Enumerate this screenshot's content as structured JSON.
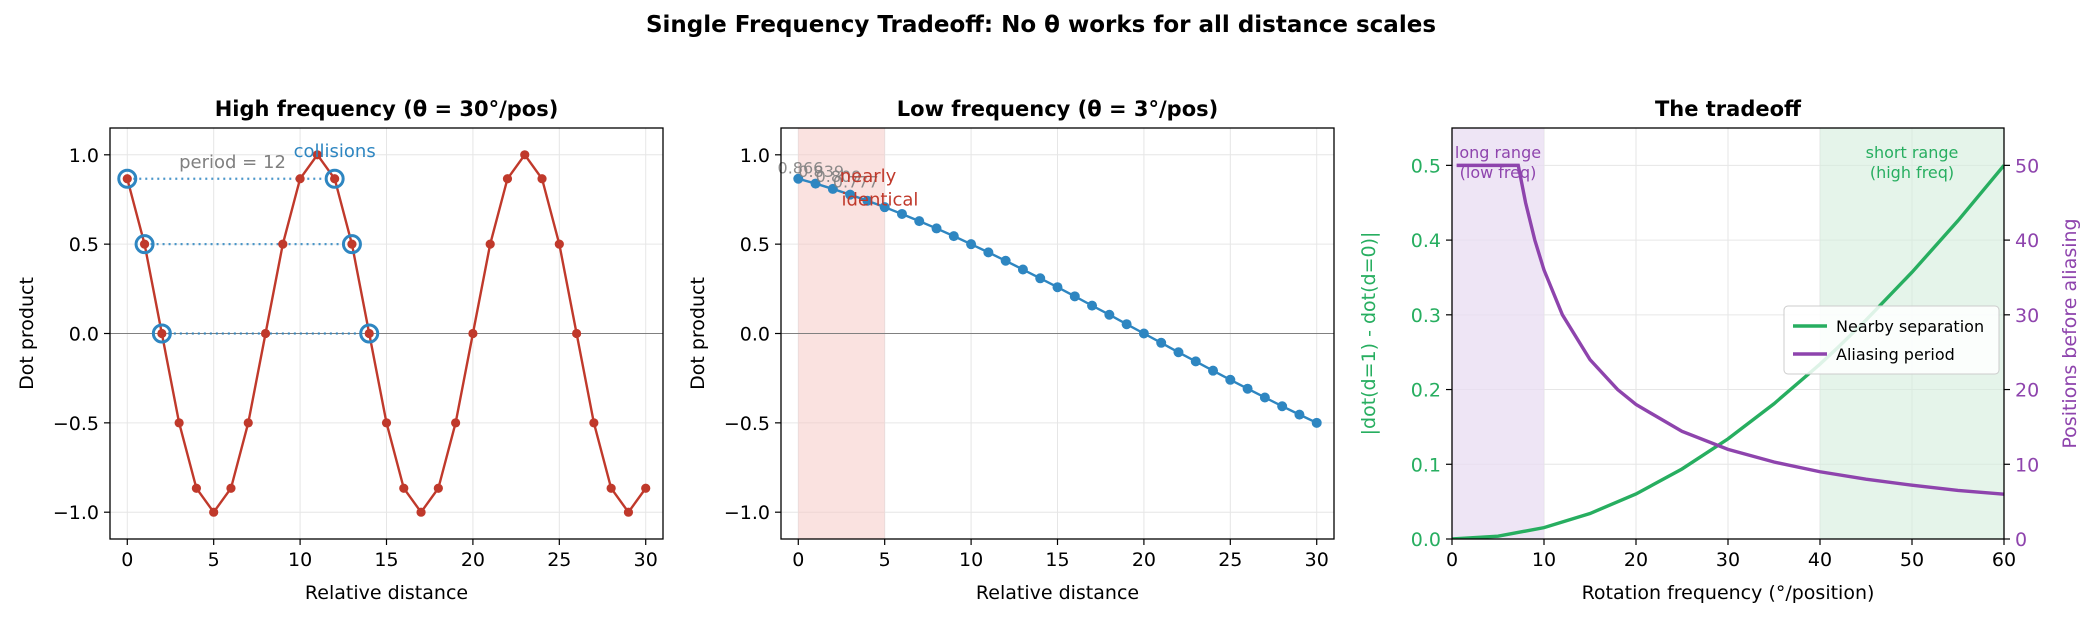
{
  "suptitle": "Single Frequency Tradeoff: No θ works for all distance scales",
  "colors": {
    "red": "#c0392b",
    "blue": "#2e86c1",
    "green": "#27ae60",
    "purple": "#8e44ad",
    "gray": "#808080",
    "axis": "#000000"
  },
  "chart_data": [
    {
      "type": "line",
      "title": "High frequency (θ = 30°/pos)",
      "xlabel": "Relative distance",
      "ylabel": "Dot product",
      "xlim": [
        -1,
        31
      ],
      "ylim": [
        -1.15,
        1.15
      ],
      "xticks": [
        0,
        5,
        10,
        15,
        20,
        25,
        30
      ],
      "xtick_labels": [
        "0",
        "5",
        "10",
        "15",
        "20",
        "25",
        "30"
      ],
      "yticks": [
        -1.0,
        -0.5,
        0.0,
        0.5,
        1.0
      ],
      "ytick_labels": [
        "−1.0",
        "−0.5",
        "0.0",
        "0.5",
        "1.0"
      ],
      "grid": true,
      "series": [
        {
          "x": [
            0,
            1,
            2,
            3,
            4,
            5,
            6,
            7,
            8,
            9,
            10,
            11,
            12,
            13,
            14,
            15,
            16,
            17,
            18,
            19,
            20,
            21,
            22,
            23,
            24,
            25,
            26,
            27,
            28,
            29,
            30
          ],
          "y": [
            0.866,
            0.5,
            0.0,
            -0.5,
            -0.866,
            -1.0,
            -0.866,
            -0.5,
            0.0,
            0.5,
            0.866,
            1.0,
            0.866,
            0.5,
            0.0,
            -0.5,
            -0.866,
            -1.0,
            -0.866,
            -0.5,
            0.0,
            0.5,
            0.866,
            1.0,
            0.866,
            0.5,
            0.0,
            -0.5,
            -0.866,
            -1.0,
            -0.866
          ]
        }
      ],
      "collision_pairs": [
        {
          "x1": 0,
          "x2": 12,
          "y": 0.866
        },
        {
          "x1": 1,
          "x2": 13,
          "y": 0.5
        },
        {
          "x1": 2,
          "x2": 14,
          "y": 0.0
        }
      ],
      "annotations": [
        {
          "text": "period = 12",
          "x": 3,
          "y": 0.96
        },
        {
          "text": "collisions",
          "x": 12,
          "y": 1.02
        }
      ]
    },
    {
      "type": "line",
      "title": "Low frequency (θ = 3°/pos)",
      "xlabel": "Relative distance",
      "ylabel": "Dot product",
      "xlim": [
        -1,
        31
      ],
      "ylim": [
        -1.15,
        1.15
      ],
      "xticks": [
        0,
        5,
        10,
        15,
        20,
        25,
        30
      ],
      "xtick_labels": [
        "0",
        "5",
        "10",
        "15",
        "20",
        "25",
        "30"
      ],
      "yticks": [
        -1.0,
        -0.5,
        0.0,
        0.5,
        1.0
      ],
      "ytick_labels": [
        "−1.0",
        "−0.5",
        "0.0",
        "0.5",
        "1.0"
      ],
      "grid": true,
      "shaded_region": [
        0,
        5
      ],
      "series": [
        {
          "x": [
            0,
            1,
            2,
            3,
            4,
            5,
            6,
            7,
            8,
            9,
            10,
            11,
            12,
            13,
            14,
            15,
            16,
            17,
            18,
            19,
            20,
            21,
            22,
            23,
            24,
            25,
            26,
            27,
            28,
            29,
            30
          ],
          "y": [
            0.866,
            0.839,
            0.809,
            0.777,
            0.743,
            0.707,
            0.669,
            0.629,
            0.588,
            0.545,
            0.5,
            0.454,
            0.407,
            0.358,
            0.309,
            0.259,
            0.208,
            0.156,
            0.105,
            0.052,
            0.0,
            -0.052,
            -0.105,
            -0.156,
            -0.208,
            -0.259,
            -0.309,
            -0.358,
            -0.407,
            -0.454,
            -0.5
          ]
        }
      ],
      "annotations": [
        {
          "text": "0.866",
          "x": -1.2,
          "y": 0.93
        },
        {
          "text": "0.839",
          "x": 0.0,
          "y": 0.91
        },
        {
          "text": "0.809",
          "x": 1.0,
          "y": 0.88
        },
        {
          "text": "0.777",
          "x": 2.0,
          "y": 0.85
        },
        {
          "text": "nearly",
          "x": 2.4,
          "y": 0.88
        },
        {
          "text": "identical",
          "x": 2.5,
          "y": 0.75
        }
      ]
    },
    {
      "type": "line",
      "title": "The tradeoff",
      "xlabel": "Rotation frequency (°/position)",
      "ylabel": "|dot(d=1) - dot(d=0)|",
      "ylabel_right": "Positions before aliasing",
      "xlim": [
        0,
        60
      ],
      "ylim": [
        0,
        0.55
      ],
      "ylim_right": [
        0,
        55
      ],
      "xticks": [
        0,
        10,
        20,
        30,
        40,
        50,
        60
      ],
      "xtick_labels": [
        "0",
        "10",
        "20",
        "30",
        "40",
        "50",
        "60"
      ],
      "yticks": [
        0.0,
        0.1,
        0.2,
        0.3,
        0.4,
        0.5
      ],
      "ytick_labels": [
        "0.0",
        "0.1",
        "0.2",
        "0.3",
        "0.4",
        "0.5"
      ],
      "yticks_right": [
        0,
        10,
        20,
        30,
        40,
        50
      ],
      "ytick_labels_right": [
        "0",
        "10",
        "20",
        "30",
        "40",
        "50"
      ],
      "grid": true,
      "shaded_regions": [
        {
          "x": [
            0,
            10
          ],
          "label": "long range\n(low freq)"
        },
        {
          "x": [
            40,
            60
          ],
          "label": "short range\n(high freq)"
        }
      ],
      "series": [
        {
          "name": "Nearby separation",
          "axis": "left",
          "x": [
            0,
            5,
            10,
            15,
            20,
            25,
            30,
            35,
            40,
            42,
            45,
            50,
            55,
            60
          ],
          "y": [
            0.0,
            0.0038,
            0.0152,
            0.0341,
            0.0603,
            0.0937,
            0.134,
            0.181,
            0.234,
            0.257,
            0.293,
            0.357,
            0.426,
            0.5
          ]
        },
        {
          "name": "Aliasing period",
          "axis": "right",
          "x": [
            0.5,
            1,
            2,
            3,
            4,
            5,
            6,
            7.2,
            8,
            9,
            10,
            12,
            15,
            18,
            20,
            25,
            30,
            35,
            40,
            45,
            50,
            55,
            60
          ],
          "y": [
            50,
            50,
            50,
            50,
            50,
            50,
            50,
            50,
            45,
            40,
            36,
            30,
            24,
            20,
            18,
            14.4,
            12,
            10.3,
            9,
            8,
            7.2,
            6.5,
            6
          ]
        }
      ],
      "legend": {
        "position": "center-right",
        "entries": [
          "Nearby separation",
          "Aliasing period"
        ]
      }
    }
  ]
}
